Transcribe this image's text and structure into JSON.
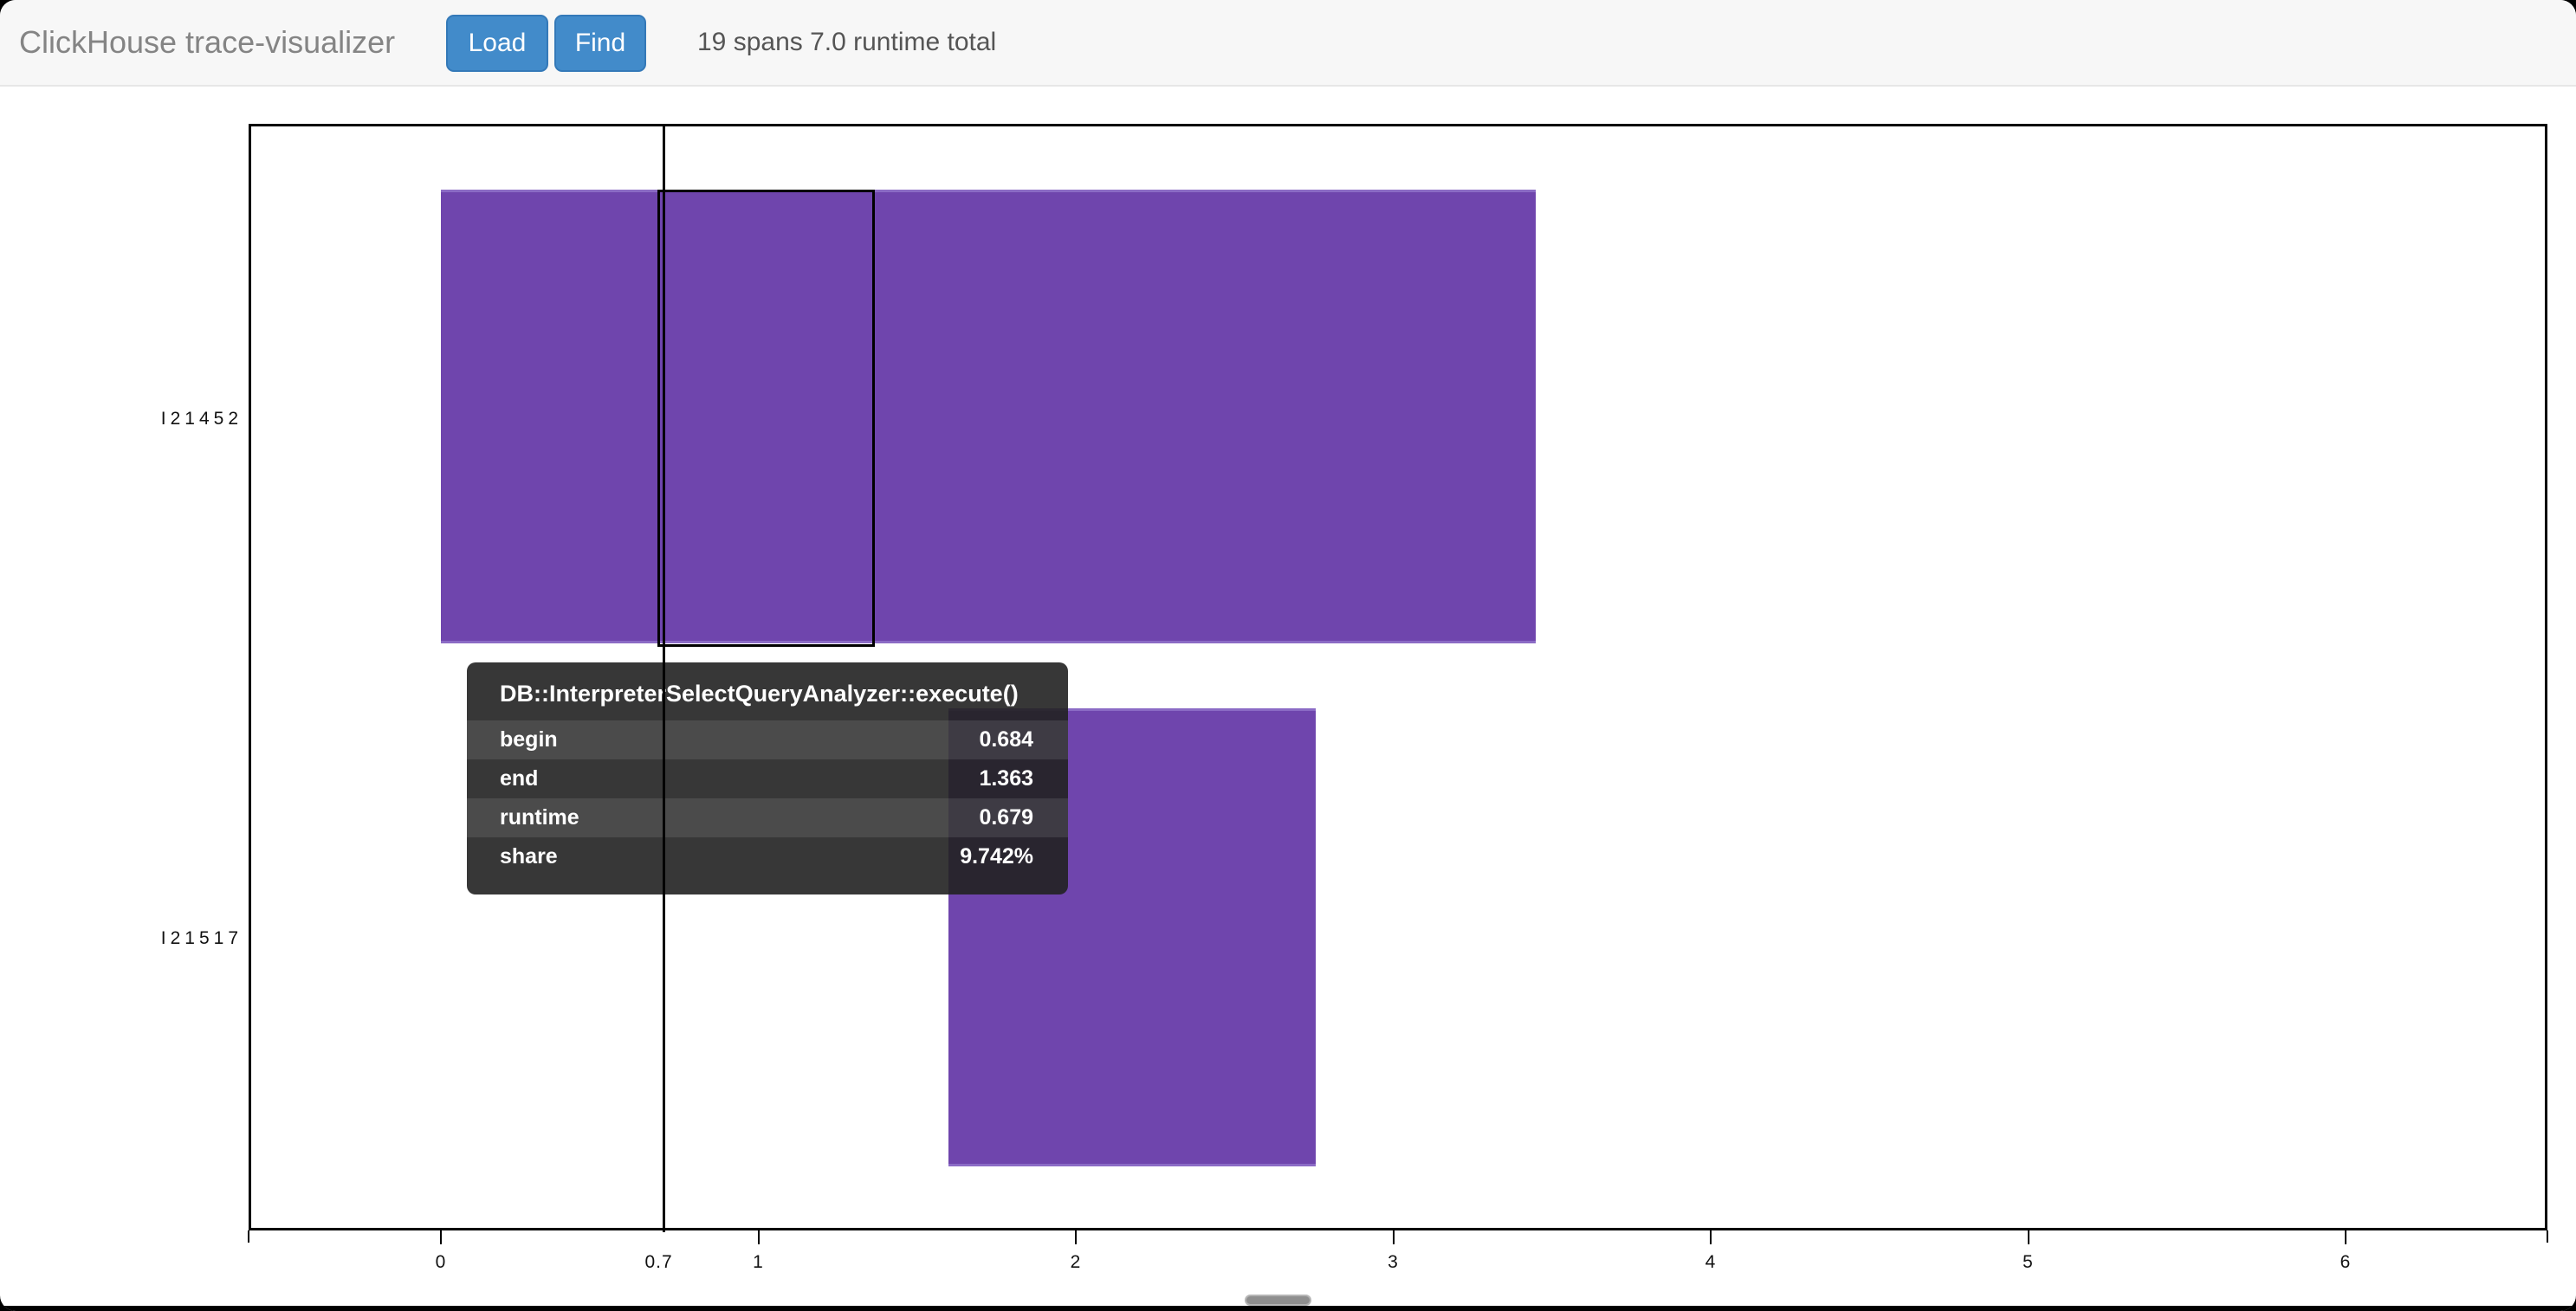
{
  "header": {
    "title": "ClickHouse trace-visualizer",
    "load_label": "Load",
    "find_label": "Find",
    "summary": "19 spans 7.0 runtime total"
  },
  "colors": {
    "button_blue": "#428bca",
    "button_border": "#3479b8",
    "span_purple": "#6f45ad",
    "span_purple_edge": "#8b6bc5",
    "navbar_bg": "#f7f7f7",
    "navbar_border": "#e7e7e7",
    "title_gray": "#848484",
    "summary_gray": "#555555",
    "tooltip_bg": "rgba(33,33,33,0.90)"
  },
  "tooltip": {
    "title": "DB::InterpreterSelectQueryAnalyzer::execute()",
    "rows": [
      {
        "label": "begin",
        "value": "0.684"
      },
      {
        "label": "end",
        "value": "1.363"
      },
      {
        "label": "runtime",
        "value": "0.679"
      },
      {
        "label": "share",
        "value": "9.742%"
      }
    ]
  },
  "chart_data": {
    "type": "gantt",
    "title": "",
    "xlabel": "",
    "ylabel": "",
    "xlim": [
      -0.61,
      6.64
    ],
    "grid": false,
    "legend": false,
    "total_spans": 19,
    "total_runtime": 7.0,
    "x_axis": {
      "ticks": [
        {
          "t": 0,
          "label": "0"
        },
        {
          "t": 1,
          "label": "1"
        },
        {
          "t": 2,
          "label": "2"
        },
        {
          "t": 3,
          "label": "3"
        },
        {
          "t": 4,
          "label": "4"
        },
        {
          "t": 5,
          "label": "5"
        },
        {
          "t": 6,
          "label": "6"
        }
      ],
      "marker": {
        "t": 0.7,
        "label": "0.7"
      }
    },
    "rows": [
      {
        "thread": "I21452",
        "spans": [
          {
            "begin": 0.0,
            "end": 3.45
          }
        ],
        "selected_span": {
          "name": "DB::InterpreterSelectQueryAnalyzer::execute()",
          "begin": 0.684,
          "end": 1.363,
          "runtime": 0.679,
          "share_pct": 9.742
        }
      },
      {
        "thread": "I21517",
        "spans": [
          {
            "begin": 1.6,
            "end": 2.755
          }
        ]
      }
    ]
  }
}
